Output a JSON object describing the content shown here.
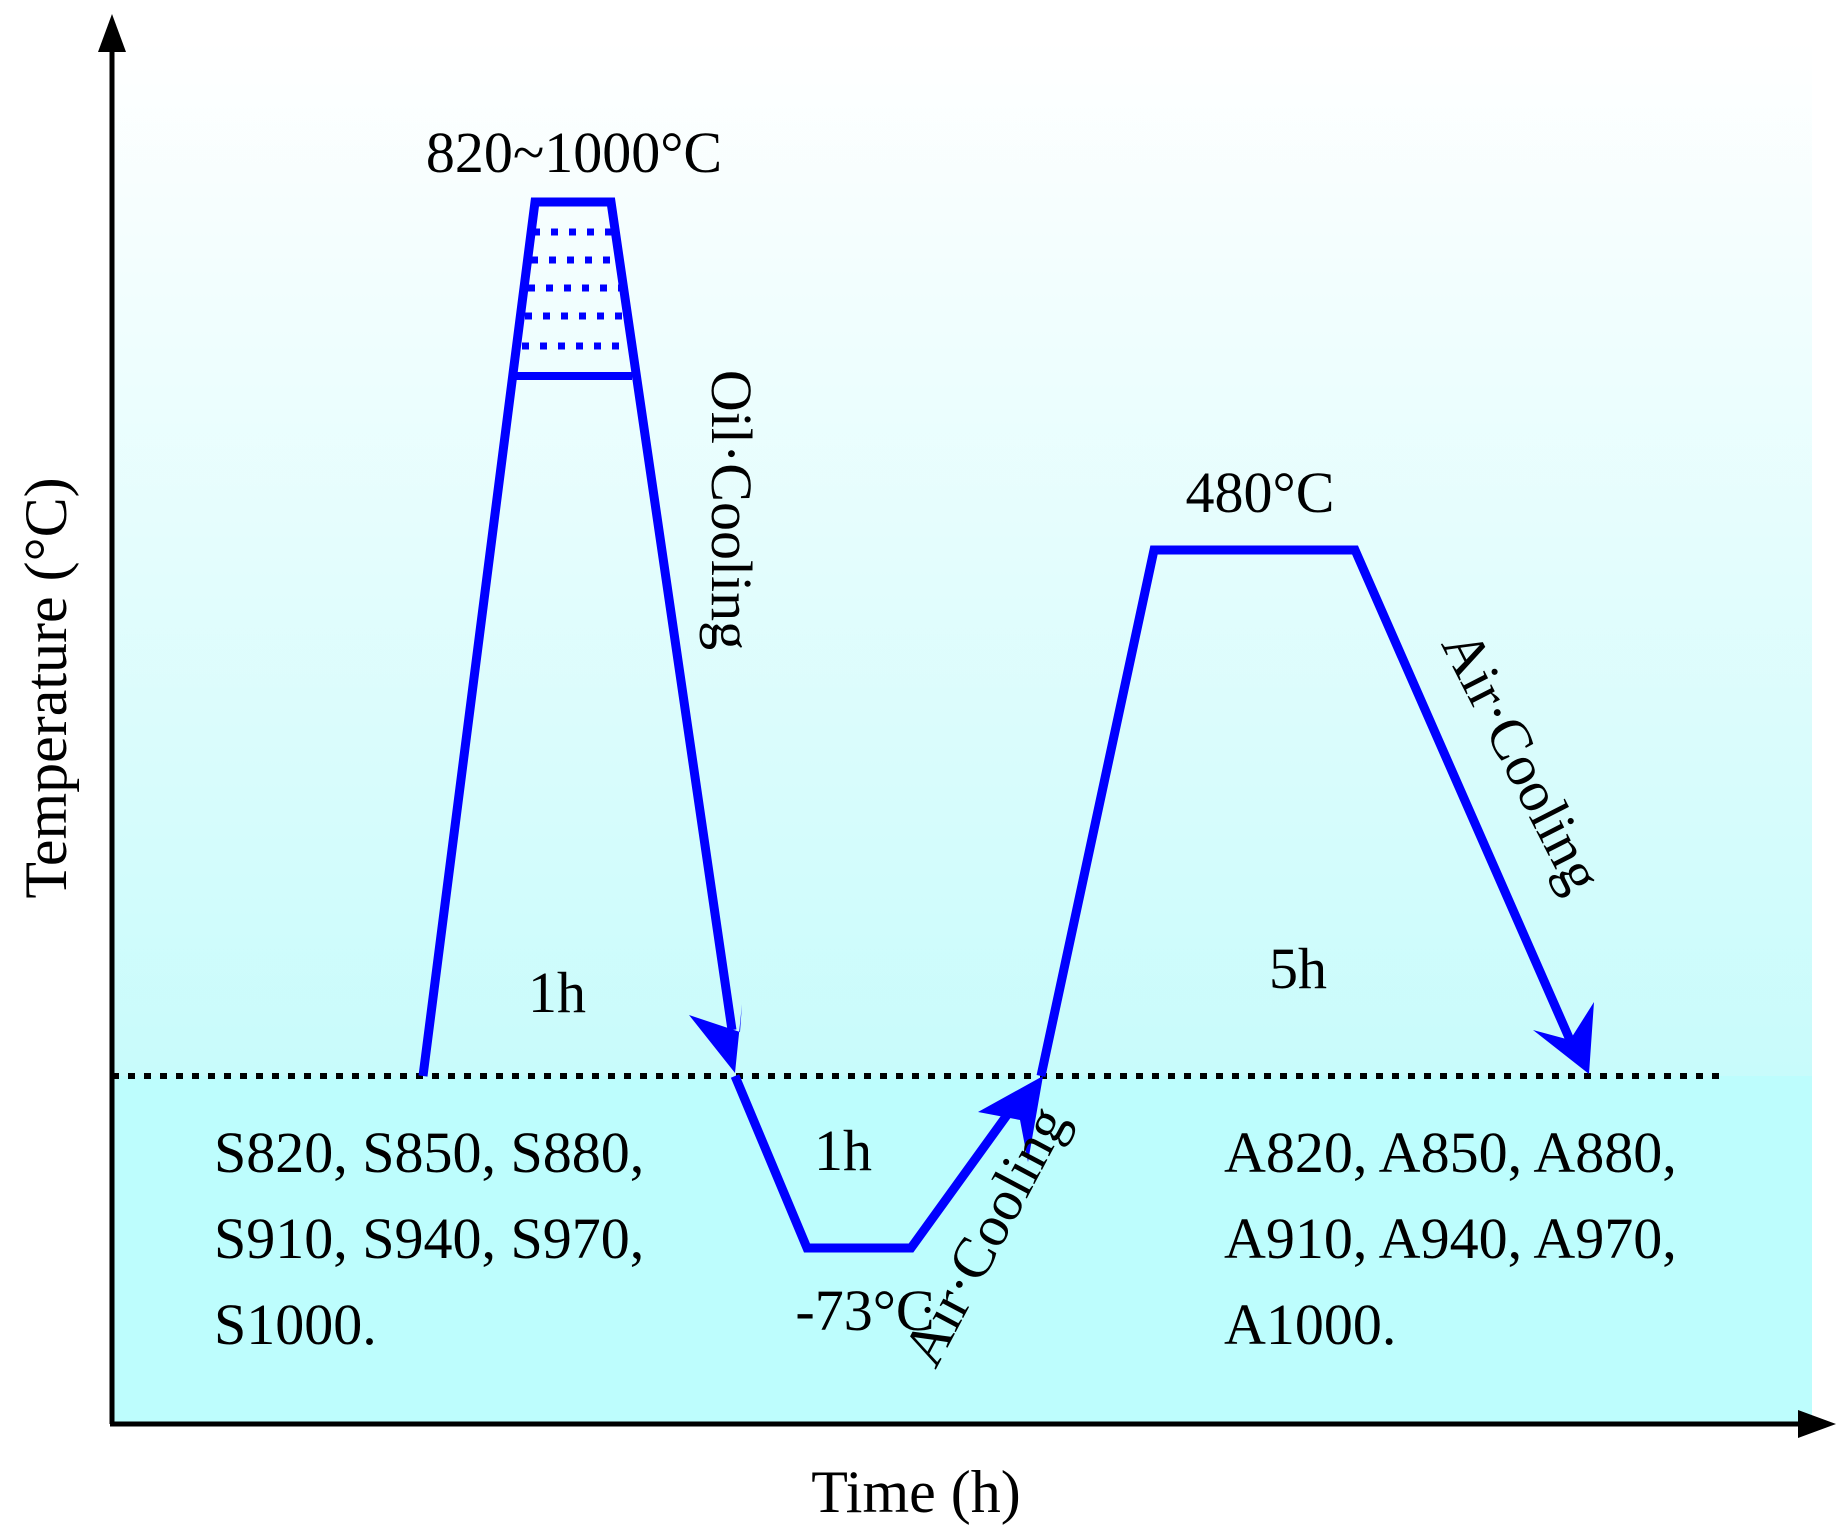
{
  "axes": {
    "x_label": "Time (h)",
    "y_label": "Temperature (°C)"
  },
  "austenitizing": {
    "temperature": "820~1000°C",
    "time": "1h",
    "cooling": "Oil·Cooling"
  },
  "cryogenic": {
    "temperature": "-73°C",
    "time": "1h",
    "cooling": "Air·Cooling"
  },
  "tempering": {
    "temperature": "480°C",
    "time": "5h",
    "cooling": "Air·Cooling"
  },
  "sample_groups": {
    "S": [
      "S820, S850, S880,",
      "S910, S940, S970,",
      "S1000."
    ],
    "A": [
      "A820, A850, A880,",
      "A910, A940, A970,",
      "A1000."
    ]
  },
  "colors": {
    "process_line": "#0000ff",
    "axis": "#000000",
    "bg_top": "#ffffff",
    "bg_bottom": "#bdfdfd"
  }
}
